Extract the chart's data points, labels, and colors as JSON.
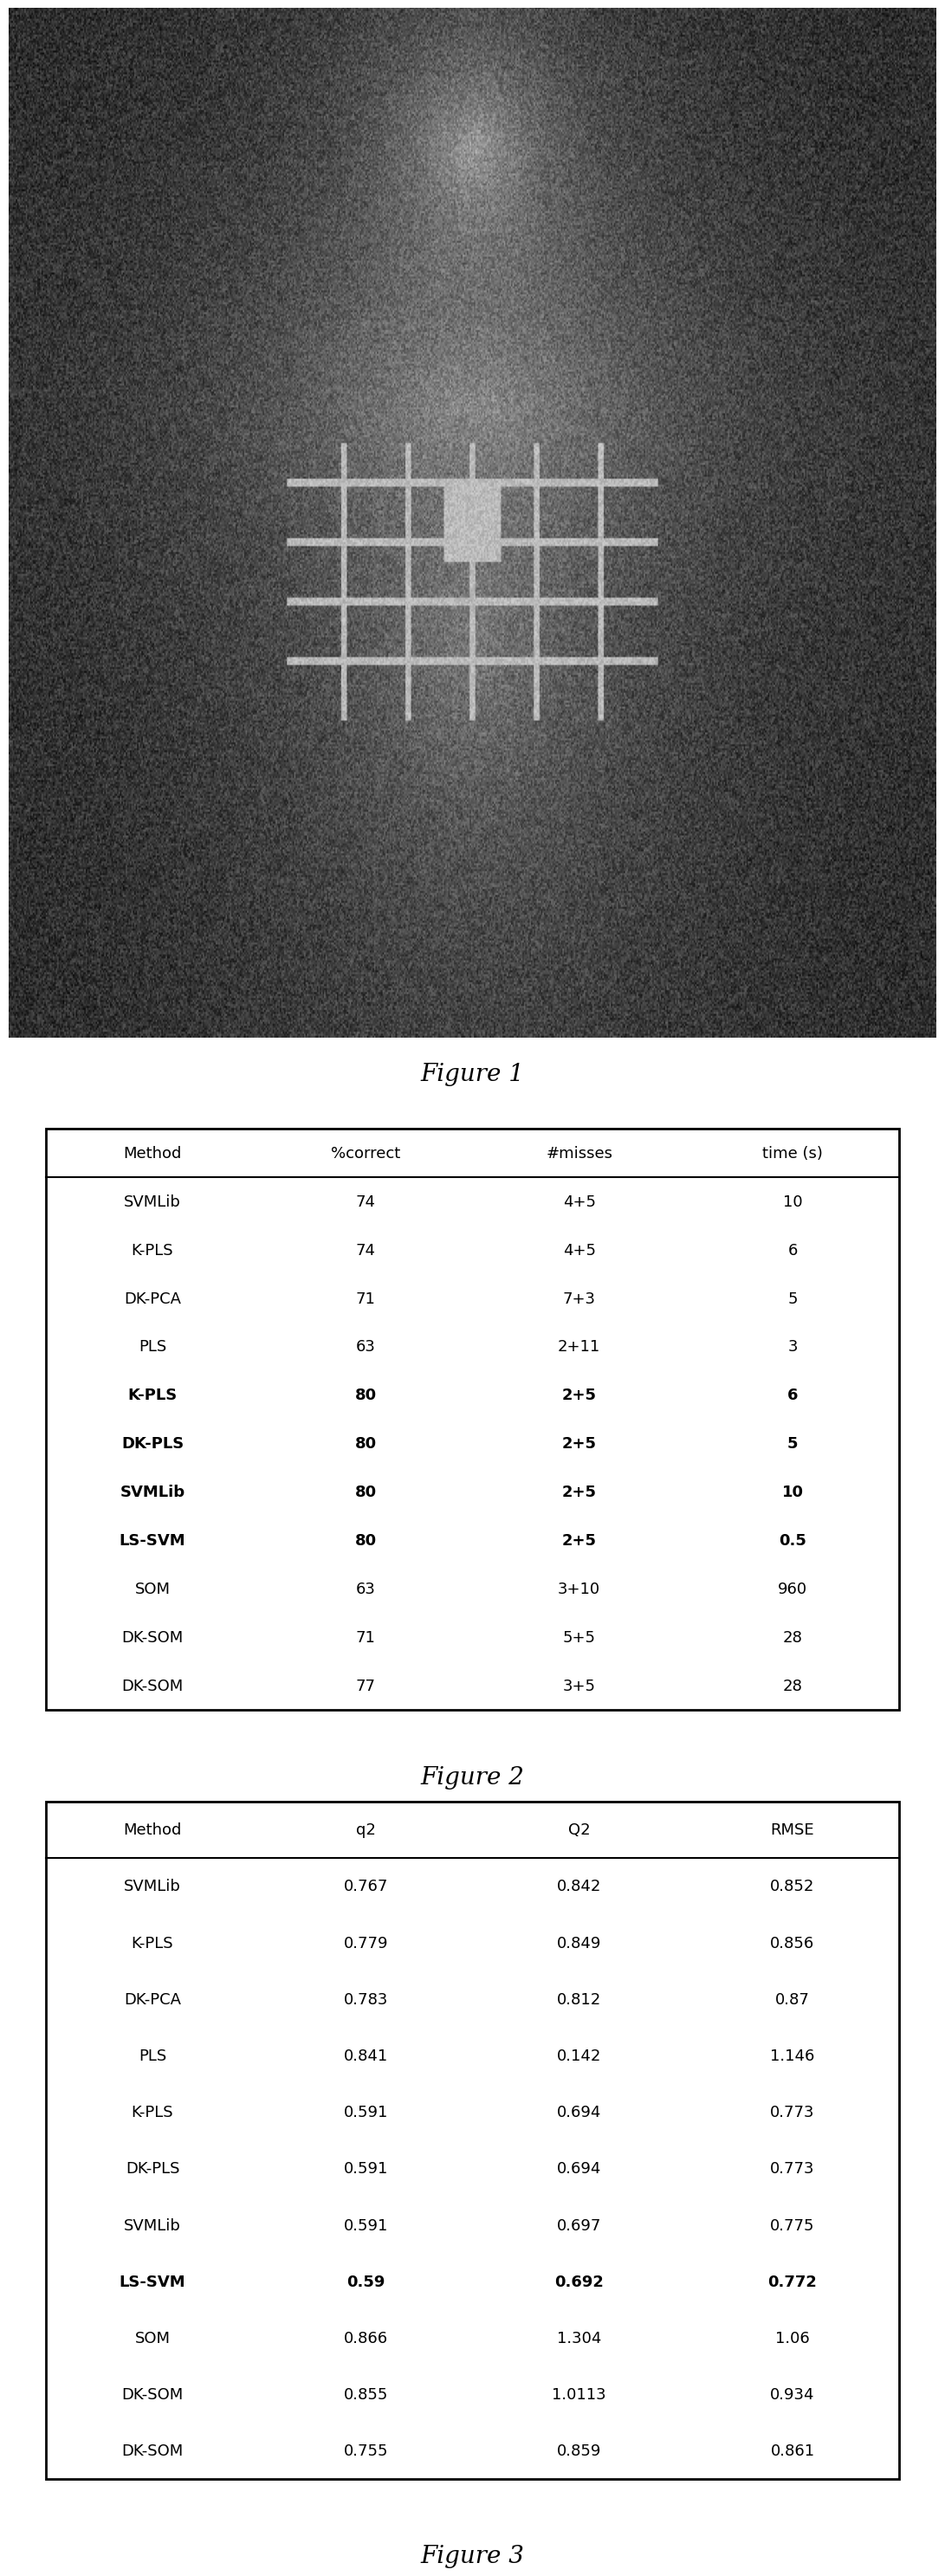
{
  "fig1_caption": "Figure 1",
  "fig2_caption": "Figure 2",
  "fig3_caption": "Figure 3",
  "table2_headers": [
    "Method",
    "%correct",
    "#misses",
    "time (s)"
  ],
  "table2_rows": [
    [
      "SVMLib",
      "74",
      "4+5",
      "10",
      false
    ],
    [
      "K-PLS",
      "74",
      "4+5",
      "6",
      false
    ],
    [
      "DK-PCA",
      "71",
      "7+3",
      "5",
      false
    ],
    [
      "PLS",
      "63",
      "2+11",
      "3",
      false
    ],
    [
      "K-PLS",
      "80",
      "2+5",
      "6",
      true
    ],
    [
      "DK-PLS",
      "80",
      "2+5",
      "5",
      true
    ],
    [
      "SVMLib",
      "80",
      "2+5",
      "10",
      true
    ],
    [
      "LS-SVM",
      "80",
      "2+5",
      "0.5",
      true
    ],
    [
      "SOM",
      "63",
      "3+10",
      "960",
      false
    ],
    [
      "DK-SOM",
      "71",
      "5+5",
      "28",
      false
    ],
    [
      "DK-SOM",
      "77",
      "3+5",
      "28",
      false
    ]
  ],
  "table3_headers": [
    "Method",
    "q2",
    "Q2",
    "RMSE"
  ],
  "table3_rows": [
    [
      "SVMLib",
      "0.767",
      "0.842",
      "0.852",
      false
    ],
    [
      "K-PLS",
      "0.779",
      "0.849",
      "0.856",
      false
    ],
    [
      "DK-PCA",
      "0.783",
      "0.812",
      "0.87",
      false
    ],
    [
      "PLS",
      "0.841",
      "0.142",
      "1.146",
      false
    ],
    [
      "K-PLS",
      "0.591",
      "0.694",
      "0.773",
      false
    ],
    [
      "DK-PLS",
      "0.591",
      "0.694",
      "0.773",
      false
    ],
    [
      "SVMLib",
      "0.591",
      "0.697",
      "0.775",
      false
    ],
    [
      "LS-SVM",
      "0.59",
      "0.692",
      "0.772",
      true
    ],
    [
      "SOM",
      "0.866",
      "1.304",
      "1.06",
      false
    ],
    [
      "DK-SOM",
      "0.855",
      "1.0113",
      "0.934",
      false
    ],
    [
      "DK-SOM",
      "0.755",
      "0.859",
      "0.861",
      false
    ]
  ],
  "bg_color": "#ffffff",
  "text_color": "#000000",
  "caption_fontsize": 20,
  "header_fontsize": 13,
  "cell_fontsize": 13
}
